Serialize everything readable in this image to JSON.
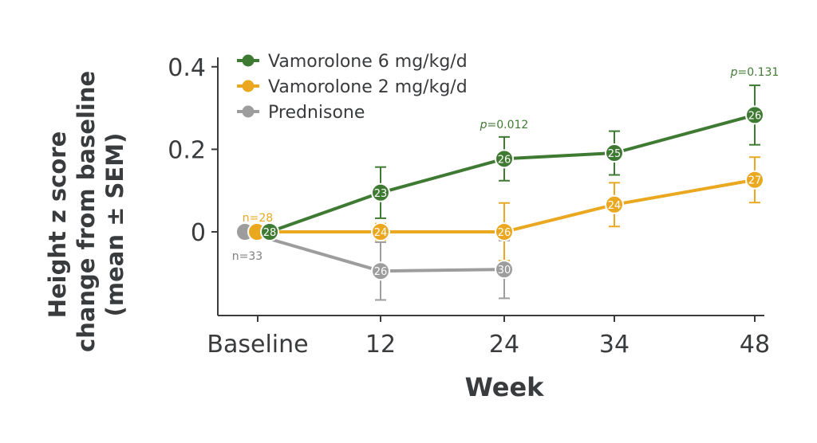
{
  "chart_data": {
    "type": "line",
    "xlabel": "Week",
    "ylabel_lines": [
      "Height z score",
      "change from baseline",
      "(mean ± SEM)"
    ],
    "categories": [
      "Baseline",
      "12",
      "24",
      "34",
      "48"
    ],
    "y_ticks": [
      "0.4",
      "0.2",
      "0"
    ],
    "ylim": [
      -0.2,
      0.42
    ],
    "legend_position": "top-left",
    "grid": false,
    "series": [
      {
        "name": "Vamorolone 6 mg/kg/d",
        "color": "#3f7a33",
        "points": [
          {
            "x": "Baseline",
            "y": 0.0,
            "err": 0,
            "n": "28"
          },
          {
            "x": "12",
            "y": 0.095,
            "err": 0.062,
            "n": "23"
          },
          {
            "x": "24",
            "y": 0.177,
            "err": 0.053,
            "n": "26"
          },
          {
            "x": "34",
            "y": 0.191,
            "err": 0.053,
            "n": "25"
          },
          {
            "x": "48",
            "y": 0.283,
            "err": 0.072,
            "n": "26"
          }
        ]
      },
      {
        "name": "Vamorolone 2 mg/kg/d",
        "color": "#eaa820",
        "points": [
          {
            "x": "Baseline",
            "y": 0.0,
            "err": 0,
            "n": ""
          },
          {
            "x": "12",
            "y": 0.0,
            "err": 0.02,
            "n": "24"
          },
          {
            "x": "24",
            "y": 0.0,
            "err": 0.07,
            "n": "26"
          },
          {
            "x": "34",
            "y": 0.066,
            "err": 0.053,
            "n": "24"
          },
          {
            "x": "48",
            "y": 0.126,
            "err": 0.055,
            "n": "27"
          }
        ]
      },
      {
        "name": "Prednisone",
        "color": "#9d9d9d",
        "points": [
          {
            "x": "Baseline",
            "y": 0.0,
            "err": 0,
            "n": ""
          },
          {
            "x": "12",
            "y": -0.095,
            "err": 0.07,
            "n": "26"
          },
          {
            "x": "24",
            "y": -0.091,
            "err": 0.07,
            "n": "30"
          }
        ]
      }
    ],
    "annotations": [
      {
        "text_prefix": "p",
        "text_value": "=0.012",
        "at": "24",
        "color": "#3f7a33"
      },
      {
        "text_prefix": "p",
        "text_value": "=0.131",
        "at": "48",
        "color": "#3f7a33"
      },
      {
        "text": "n=28",
        "at": "Baseline",
        "color": "#eaa820"
      },
      {
        "text": "n=33",
        "at": "Baseline",
        "color": "#808080"
      }
    ]
  }
}
